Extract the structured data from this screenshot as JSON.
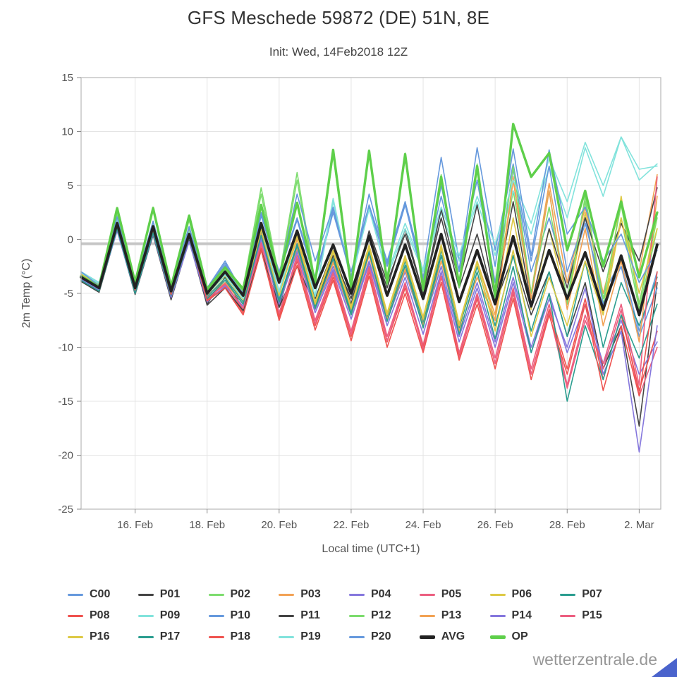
{
  "title": "GFS Meschede 59872 (DE) 51N, 8E",
  "subtitle": "Init: Wed, 14Feb2018 12Z",
  "watermark": "wetterzentrale.de",
  "chart_data": {
    "type": "line",
    "title": "GFS Meschede 59872 (DE) 51N, 8E",
    "subtitle": "Init: Wed, 14Feb2018 12Z",
    "xlabel": "Local time (UTC+1)",
    "ylabel": "2m Temp (°C)",
    "ylim": [
      -25,
      15
    ],
    "yticks": [
      -25,
      -20,
      -15,
      -10,
      -5,
      0,
      5,
      10,
      15
    ],
    "xlim": [
      0,
      16.1
    ],
    "x_start": 0,
    "x_step": 0.5,
    "x_unit": "days since init (14 Feb 12Z)",
    "grid": true,
    "legend_position": "bottom",
    "zero_line": {
      "value": -0.4,
      "color": "#c6c6c6",
      "width": 4
    },
    "xticks": [
      {
        "t": 1.5,
        "label": "16. Feb"
      },
      {
        "t": 3.5,
        "label": "18. Feb"
      },
      {
        "t": 5.5,
        "label": "20. Feb"
      },
      {
        "t": 7.5,
        "label": "22. Feb"
      },
      {
        "t": 9.5,
        "label": "24. Feb"
      },
      {
        "t": 11.5,
        "label": "26. Feb"
      },
      {
        "t": 13.5,
        "label": "28. Feb"
      },
      {
        "t": 15.5,
        "label": "2. Mar"
      }
    ],
    "series": [
      {
        "name": "C00",
        "color": "#6699dd",
        "width": 1.6,
        "values": [
          -3.0,
          -4.0,
          2.0,
          -4.0,
          1.5,
          -4.5,
          1.0,
          -4.5,
          -2.0,
          -5.0,
          2.5,
          -3.0,
          2.0,
          -3.5,
          2.8,
          -3.0,
          3.2,
          -2.0,
          3.5,
          -3.0,
          7.6,
          -2.0,
          5.5,
          -4.0,
          6.5,
          -3.0,
          2.0,
          -4.0,
          1.5,
          -5.0,
          -2.0,
          -8.5,
          -3.0
        ]
      },
      {
        "name": "P01",
        "color": "#444444",
        "width": 1.6,
        "values": [
          -3.8,
          -4.8,
          1.0,
          -5.0,
          0.5,
          -5.5,
          0.0,
          -6.0,
          -3.5,
          -6.5,
          0.5,
          -6.3,
          -0.5,
          -5.5,
          -1.0,
          -6.0,
          0.5,
          -4.5,
          1.0,
          -5.0,
          2.0,
          -4.5,
          0.5,
          -6.0,
          -1.5,
          -7.0,
          -3.0,
          -9.0,
          -4.0,
          -12.0,
          -8.0,
          -17.3,
          -4.0
        ]
      },
      {
        "name": "P02",
        "color": "#7ddc6e",
        "width": 1.6,
        "values": [
          -3.2,
          -4.2,
          2.5,
          -3.8,
          3.0,
          -4.5,
          2.0,
          -4.8,
          -2.5,
          -4.5,
          4.8,
          -3.5,
          6.2,
          -4.0,
          8.2,
          -4.5,
          8.3,
          -4.0,
          8.0,
          -4.5,
          6.0,
          -4.0,
          7.0,
          -5.0,
          4.5,
          -5.0,
          3.0,
          -5.5,
          3.5,
          -6.0,
          2.0,
          -6.5,
          1.0
        ]
      },
      {
        "name": "P03",
        "color": "#f2a254",
        "width": 1.6,
        "values": [
          -3.4,
          -4.4,
          1.2,
          -4.6,
          0.8,
          -5.0,
          0.2,
          -5.2,
          -3.8,
          -5.5,
          0.8,
          -5.0,
          0.0,
          -6.0,
          -2.0,
          -6.5,
          -1.0,
          -7.0,
          -2.5,
          -7.5,
          -1.5,
          -8.0,
          -2.0,
          -7.0,
          5.8,
          -5.0,
          5.2,
          -4.0,
          3.0,
          -5.0,
          1.5,
          -3.0,
          6.0
        ]
      },
      {
        "name": "P04",
        "color": "#8577dd",
        "width": 1.6,
        "values": [
          -3.6,
          -4.6,
          1.0,
          -4.8,
          0.6,
          -5.2,
          0.0,
          -5.5,
          -4.0,
          -6.0,
          0.2,
          -5.5,
          -1.0,
          -6.5,
          -2.5,
          -7.0,
          -2.0,
          -7.5,
          -3.0,
          -8.0,
          -2.5,
          -9.0,
          -4.0,
          -9.5,
          -3.5,
          -10.0,
          -5.0,
          -10.5,
          -6.0,
          -11.5,
          -7.5,
          -12.5,
          -9.5
        ]
      },
      {
        "name": "P05",
        "color": "#ec5f80",
        "width": 1.6,
        "values": [
          -3.3,
          -4.3,
          1.8,
          -4.4,
          1.0,
          -5.0,
          0.5,
          -5.5,
          -4.2,
          -6.5,
          -0.5,
          -7.0,
          -1.5,
          -7.5,
          -3.0,
          -8.5,
          -2.5,
          -9.0,
          -4.0,
          -9.8,
          -3.0,
          -10.5,
          -5.0,
          -11.0,
          -4.5,
          -12.0,
          -6.0,
          -13.5,
          -7.0,
          -12.0,
          -6.5,
          -14.5,
          -10.0
        ]
      },
      {
        "name": "P06",
        "color": "#ddc944",
        "width": 1.6,
        "values": [
          -3.1,
          -4.1,
          1.6,
          -4.2,
          1.4,
          -4.6,
          0.8,
          -5.0,
          -3.0,
          -5.5,
          1.0,
          -5.0,
          0.5,
          -5.8,
          -1.0,
          -6.2,
          -0.5,
          -6.8,
          -1.5,
          -7.2,
          -0.5,
          -7.8,
          -2.0,
          -7.5,
          2.0,
          -6.5,
          1.0,
          -6.0,
          2.5,
          -7.0,
          4.0,
          -6.0,
          2.5
        ]
      },
      {
        "name": "P07",
        "color": "#2a9d8f",
        "width": 1.6,
        "values": [
          -3.7,
          -4.7,
          1.1,
          -4.9,
          0.7,
          -5.1,
          0.3,
          -5.3,
          -3.6,
          -5.8,
          0.6,
          -5.6,
          -0.4,
          -6.2,
          -1.5,
          -6.8,
          -1.0,
          -7.2,
          -2.0,
          -7.8,
          -1.0,
          -8.2,
          -2.5,
          -8.0,
          -1.5,
          -8.5,
          -3.0,
          -9.0,
          -2.0,
          -10.0,
          -4.0,
          -8.0,
          -3.5
        ]
      },
      {
        "name": "P08",
        "color": "#ef5350",
        "width": 1.6,
        "values": [
          -3.2,
          -4.4,
          1.4,
          -4.6,
          0.9,
          -5.0,
          0.4,
          -5.6,
          -4.4,
          -6.8,
          -0.8,
          -7.2,
          -2.0,
          -8.0,
          -3.5,
          -9.0,
          -3.0,
          -9.5,
          -4.5,
          -10.0,
          -3.5,
          -10.8,
          -5.5,
          -11.5,
          -5.0,
          -12.5,
          -6.5,
          -12.0,
          -5.5,
          -13.0,
          -7.0,
          -14.0,
          -8.5
        ]
      },
      {
        "name": "P09",
        "color": "#82e3dc",
        "width": 1.6,
        "values": [
          -3.0,
          -4.0,
          1.8,
          -4.2,
          1.2,
          -4.8,
          0.6,
          -5.0,
          -3.2,
          -5.4,
          1.2,
          -4.8,
          0.8,
          -5.2,
          3.8,
          -4.0,
          3.0,
          -3.5,
          1.0,
          -3.0,
          2.5,
          -2.0,
          3.5,
          -1.5,
          4.5,
          0.5,
          6.8,
          2.0,
          8.5,
          4.0,
          9.5,
          5.5,
          7.0
        ]
      },
      {
        "name": "P10",
        "color": "#6699dd",
        "width": 1.6,
        "values": [
          -3.1,
          -4.2,
          1.9,
          -4.1,
          1.6,
          -4.4,
          1.1,
          -4.6,
          -2.2,
          -5.2,
          2.2,
          -3.2,
          1.8,
          -3.8,
          2.5,
          -3.4,
          3.0,
          -2.5,
          3.2,
          -3.5,
          4.0,
          -2.8,
          8.5,
          -1.0,
          7.0,
          -2.0,
          6.8,
          -3.0,
          2.0,
          -6.0,
          -2.5,
          -9.0,
          -4.5
        ]
      },
      {
        "name": "P11",
        "color": "#444444",
        "width": 1.6,
        "values": [
          -3.9,
          -4.9,
          0.9,
          -5.1,
          0.4,
          -5.6,
          -0.1,
          -6.1,
          -4.5,
          -6.6,
          -1.0,
          -6.3,
          -2.5,
          -6.0,
          -1.5,
          -5.5,
          0.8,
          -4.0,
          0.5,
          -5.0,
          2.8,
          -4.0,
          3.2,
          -5.5,
          3.5,
          -6.0,
          1.0,
          -4.5,
          2.0,
          -3.0,
          1.5,
          -2.0,
          4.8
        ]
      },
      {
        "name": "P12",
        "color": "#7ddc6e",
        "width": 1.6,
        "values": [
          -3.3,
          -4.3,
          2.2,
          -4.0,
          2.8,
          -4.6,
          1.8,
          -4.9,
          -2.8,
          -4.8,
          4.2,
          -3.8,
          5.5,
          -4.2,
          7.8,
          -4.8,
          8.0,
          -4.2,
          7.6,
          -4.8,
          5.5,
          -4.5,
          6.8,
          -5.5,
          6.8,
          -5.0,
          4.5,
          -6.0,
          4.0,
          -5.5,
          3.2,
          -6.0,
          2.0
        ]
      },
      {
        "name": "P13",
        "color": "#f2a254",
        "width": 1.6,
        "values": [
          -3.5,
          -4.5,
          1.3,
          -4.7,
          0.9,
          -5.1,
          0.3,
          -5.4,
          -4.0,
          -6.0,
          0.5,
          -5.8,
          -0.8,
          -6.4,
          -2.2,
          -7.0,
          -1.5,
          -7.4,
          -2.8,
          -8.0,
          -2.0,
          -8.5,
          -3.5,
          -7.5,
          5.5,
          -5.5,
          4.5,
          -6.5,
          1.0,
          -8.0,
          -2.0,
          -9.5,
          4.0
        ]
      },
      {
        "name": "P14",
        "color": "#8577dd",
        "width": 1.6,
        "values": [
          -3.7,
          -4.7,
          0.8,
          -5.0,
          0.5,
          -5.4,
          -0.2,
          -5.8,
          -4.3,
          -6.2,
          0.0,
          -6.0,
          -1.2,
          -6.8,
          -2.8,
          -7.4,
          -2.2,
          -8.0,
          -3.5,
          -8.8,
          -3.0,
          -9.5,
          -4.5,
          -10.0,
          -4.0,
          -10.5,
          -5.5,
          -10.0,
          -4.5,
          -12.5,
          -8.5,
          -19.7,
          -8.0
        ]
      },
      {
        "name": "P15",
        "color": "#ec5f80",
        "width": 1.6,
        "values": [
          -3.4,
          -4.4,
          1.7,
          -4.5,
          1.1,
          -4.9,
          0.6,
          -5.4,
          -4.1,
          -6.4,
          -0.3,
          -6.8,
          -1.8,
          -7.8,
          -3.2,
          -8.8,
          -2.8,
          -9.4,
          -4.2,
          -10.2,
          -3.4,
          -11.0,
          -5.2,
          -11.5,
          -4.8,
          -12.5,
          -6.8,
          -13.8,
          -7.5,
          -11.5,
          -6.0,
          -13.5,
          5.8
        ]
      },
      {
        "name": "P16",
        "color": "#ddc944",
        "width": 1.6,
        "values": [
          -3.2,
          -4.2,
          1.5,
          -4.3,
          1.3,
          -4.7,
          0.7,
          -5.1,
          -3.4,
          -5.6,
          0.9,
          -5.2,
          0.3,
          -6.0,
          -1.2,
          -6.4,
          -0.8,
          -7.0,
          -1.8,
          -7.4,
          -0.8,
          -8.0,
          -2.2,
          -8.5,
          -1.0,
          -9.0,
          -3.5,
          -8.0,
          -2.0,
          -7.0,
          2.0,
          -5.0,
          1.0
        ]
      },
      {
        "name": "P17",
        "color": "#2a9d8f",
        "width": 1.6,
        "values": [
          -3.8,
          -4.8,
          1.0,
          -5.0,
          0.6,
          -5.2,
          0.2,
          -5.5,
          -3.8,
          -6.0,
          0.4,
          -5.8,
          -0.6,
          -6.4,
          -1.8,
          -7.0,
          -1.2,
          -7.6,
          -2.4,
          -8.2,
          -1.5,
          -8.8,
          -3.0,
          -9.2,
          -2.5,
          -10.5,
          -5.0,
          -15.0,
          -8.0,
          -13.0,
          -7.0,
          -11.0,
          -6.0
        ]
      },
      {
        "name": "P18",
        "color": "#ef5350",
        "width": 1.6,
        "values": [
          -3.3,
          -4.5,
          1.5,
          -4.7,
          1.0,
          -5.1,
          0.5,
          -5.7,
          -4.5,
          -7.0,
          -1.0,
          -7.5,
          -2.4,
          -8.4,
          -3.8,
          -9.4,
          -3.4,
          -10.0,
          -5.0,
          -10.5,
          -4.0,
          -11.2,
          -6.0,
          -12.0,
          -5.5,
          -13.0,
          -7.0,
          -12.5,
          -6.0,
          -14.0,
          -8.0,
          -14.5,
          -3.0
        ]
      },
      {
        "name": "P19",
        "color": "#82e3dc",
        "width": 1.6,
        "values": [
          -3.1,
          -4.1,
          1.9,
          -4.3,
          1.3,
          -4.9,
          0.7,
          -5.1,
          -3.3,
          -5.5,
          1.3,
          -4.9,
          0.9,
          -5.3,
          3.5,
          -3.8,
          2.8,
          -3.2,
          1.5,
          -2.8,
          3.0,
          -1.5,
          4.0,
          -0.5,
          5.5,
          1.5,
          7.5,
          3.5,
          9.0,
          5.0,
          9.5,
          6.5,
          6.8
        ]
      },
      {
        "name": "P20",
        "color": "#6699dd",
        "width": 1.6,
        "values": [
          -3.0,
          -4.3,
          2.1,
          -4.2,
          1.7,
          -4.5,
          1.2,
          -4.7,
          -2.4,
          -5.3,
          2.3,
          -3.4,
          4.2,
          -2.0,
          3.0,
          -3.6,
          4.2,
          -2.2,
          3.4,
          -3.8,
          5.0,
          -3.0,
          6.5,
          -2.5,
          8.4,
          -1.5,
          8.3,
          0.5,
          3.0,
          -2.0,
          0.5,
          -4.0,
          -1.0
        ]
      },
      {
        "name": "AVG",
        "color": "#222222",
        "width": 3.8,
        "values": [
          -3.5,
          -4.5,
          1.5,
          -4.5,
          1.2,
          -4.8,
          0.5,
          -5.0,
          -3.0,
          -5.2,
          1.5,
          -4.0,
          0.8,
          -4.5,
          -0.5,
          -5.0,
          0.3,
          -5.2,
          -0.5,
          -5.5,
          0.5,
          -5.8,
          -1.0,
          -6.0,
          0.3,
          -6.2,
          -1.0,
          -5.5,
          -1.2,
          -6.5,
          -1.5,
          -7.0,
          -0.5
        ]
      },
      {
        "name": "OP",
        "color": "#5ecf4a",
        "width": 3.4,
        "values": [
          -3.4,
          -4.4,
          2.9,
          -4.0,
          2.9,
          -4.4,
          2.2,
          -4.6,
          -2.6,
          -4.6,
          3.2,
          -3.6,
          3.4,
          -4.0,
          8.3,
          -4.4,
          8.2,
          -4.0,
          7.9,
          -4.6,
          5.8,
          -4.2,
          6.8,
          -5.2,
          10.7,
          5.8,
          8.0,
          -1.0,
          4.5,
          -2.5,
          3.5,
          -3.5,
          2.5
        ]
      }
    ]
  }
}
